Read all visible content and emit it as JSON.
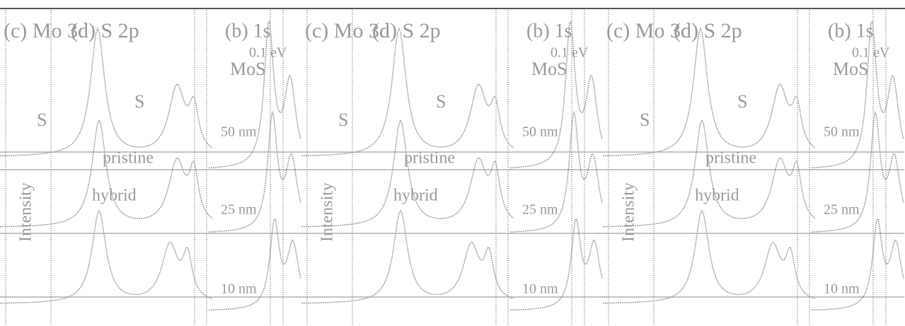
{
  "tiles": [
    {
      "panel_a": "(c) Mo 3d",
      "panel_b": "(d) S 2p",
      "panel_c": "(b) 1s",
      "sample": "MoS",
      "shift": "0.1 eV",
      "peak_1": "S",
      "peak_2": "S",
      "trace_1": "pristine",
      "trace_2": "hybrid",
      "size_1": "50 nm",
      "size_2": "25 nm",
      "size_3": "10 nm",
      "y_label": "Intensity"
    },
    {
      "panel_a": "(c) Mo 3d",
      "panel_b": "(d) S 2p",
      "panel_c": "(b) 1s",
      "sample": "MoS",
      "shift": "0.1 eV",
      "peak_1": "S",
      "peak_2": "S",
      "trace_1": "pristine",
      "trace_2": "hybrid",
      "size_1": "50 nm",
      "size_2": "25 nm",
      "size_3": "10 nm",
      "y_label": "Intensity"
    },
    {
      "panel_a": "(c) Mo 3d",
      "panel_b": "(d) S 2p",
      "panel_c": "(b) 1s",
      "sample": "MoS",
      "shift": "0.1 eV",
      "peak_1": "S",
      "peak_2": "S",
      "trace_1": "pristine",
      "trace_2": "hybrid",
      "size_1": "50 nm",
      "size_2": "25 nm",
      "size_3": "10 nm",
      "y_label": "Intensity"
    }
  ]
}
